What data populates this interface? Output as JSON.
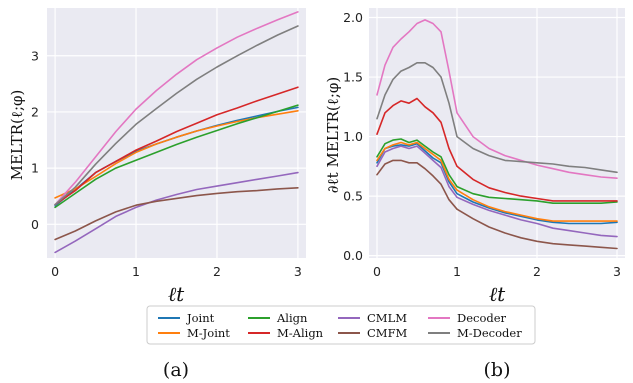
{
  "chart_data": [
    {
      "type": "line",
      "panel_label": "(a)",
      "ylabel": "MELTR(ℓ;φ)",
      "xlabel": "ℓt",
      "xlim": [
        -0.1,
        3.1
      ],
      "ylim": [
        -0.6,
        3.85
      ],
      "xticks": [
        0,
        1,
        2,
        3
      ],
      "yticks": [
        0,
        1,
        2,
        3
      ],
      "grid": true,
      "series": [
        {
          "name": "Joint",
          "color": "#1f77b4",
          "x": [
            0,
            0.25,
            0.5,
            0.75,
            1,
            1.25,
            1.5,
            1.75,
            2,
            2.25,
            2.5,
            2.75,
            3
          ],
          "y": [
            0.33,
            0.62,
            0.92,
            1.12,
            1.3,
            1.43,
            1.55,
            1.66,
            1.76,
            1.85,
            1.93,
            2.01,
            2.08
          ]
        },
        {
          "name": "M-Joint",
          "color": "#ff7f0e",
          "x": [
            0,
            0.25,
            0.5,
            0.75,
            1,
            1.25,
            1.5,
            1.75,
            2,
            2.25,
            2.5,
            2.75,
            3
          ],
          "y": [
            0.47,
            0.63,
            0.85,
            1.08,
            1.28,
            1.43,
            1.55,
            1.66,
            1.75,
            1.83,
            1.9,
            1.96,
            2.02
          ]
        },
        {
          "name": "Align",
          "color": "#2ca02c",
          "x": [
            0,
            0.25,
            0.5,
            0.75,
            1,
            1.25,
            1.5,
            1.75,
            2,
            2.25,
            2.5,
            2.75,
            3
          ],
          "y": [
            0.3,
            0.55,
            0.8,
            1.0,
            1.14,
            1.28,
            1.42,
            1.55,
            1.67,
            1.79,
            1.9,
            2.01,
            2.12
          ]
        },
        {
          "name": "M-Align",
          "color": "#d62728",
          "x": [
            0,
            0.25,
            0.5,
            0.75,
            1,
            1.25,
            1.5,
            1.75,
            2,
            2.25,
            2.5,
            2.75,
            3
          ],
          "y": [
            0.35,
            0.6,
            0.92,
            1.12,
            1.32,
            1.48,
            1.65,
            1.8,
            1.95,
            2.07,
            2.2,
            2.32,
            2.44
          ]
        },
        {
          "name": "CMLM",
          "color": "#9467bd",
          "x": [
            0,
            0.25,
            0.5,
            0.75,
            1,
            1.25,
            1.5,
            1.75,
            2,
            2.25,
            2.5,
            2.75,
            3
          ],
          "y": [
            -0.5,
            -0.3,
            -0.08,
            0.14,
            0.3,
            0.43,
            0.53,
            0.62,
            0.68,
            0.74,
            0.8,
            0.86,
            0.92
          ]
        },
        {
          "name": "CMFM",
          "color": "#8c564b",
          "x": [
            0,
            0.25,
            0.5,
            0.75,
            1,
            1.25,
            1.5,
            1.75,
            2,
            2.25,
            2.5,
            2.75,
            3
          ],
          "y": [
            -0.27,
            -0.12,
            0.06,
            0.22,
            0.34,
            0.41,
            0.46,
            0.51,
            0.55,
            0.58,
            0.6,
            0.63,
            0.65
          ]
        },
        {
          "name": "Decoder",
          "color": "#e377c2",
          "x": [
            0,
            0.25,
            0.5,
            0.75,
            1,
            1.25,
            1.5,
            1.75,
            2,
            2.25,
            2.5,
            2.75,
            3
          ],
          "y": [
            0.35,
            0.75,
            1.2,
            1.65,
            2.05,
            2.38,
            2.67,
            2.93,
            3.14,
            3.33,
            3.49,
            3.64,
            3.78
          ]
        },
        {
          "name": "M-Decoder",
          "color": "#7f7f7f",
          "x": [
            0,
            0.25,
            0.5,
            0.75,
            1,
            1.25,
            1.5,
            1.75,
            2,
            2.25,
            2.5,
            2.75,
            3
          ],
          "y": [
            0.35,
            0.66,
            1.07,
            1.44,
            1.78,
            2.06,
            2.33,
            2.58,
            2.8,
            3.0,
            3.19,
            3.37,
            3.53
          ]
        }
      ]
    },
    {
      "type": "line",
      "panel_label": "(b)",
      "ylabel": "∂ℓt MELTR(ℓ;φ)",
      "xlabel": "ℓt",
      "xlim": [
        -0.1,
        3.1
      ],
      "ylim": [
        -0.02,
        2.08
      ],
      "xticks": [
        0,
        1,
        2,
        3
      ],
      "yticks": [
        0.0,
        0.5,
        1.0,
        1.5,
        2.0
      ],
      "ytick_labels": [
        "0.0",
        "0.5",
        "1.0",
        "1.5",
        "2.0"
      ],
      "grid": true,
      "series": [
        {
          "name": "Joint",
          "color": "#1f77b4",
          "x": [
            0,
            0.1,
            0.2,
            0.3,
            0.4,
            0.5,
            0.6,
            0.7,
            0.8,
            0.9,
            1.0,
            1.2,
            1.4,
            1.6,
            1.8,
            2.0,
            2.2,
            2.4,
            2.6,
            2.8,
            3.0
          ],
          "y": [
            0.78,
            0.9,
            0.92,
            0.93,
            0.92,
            0.94,
            0.88,
            0.82,
            0.78,
            0.62,
            0.52,
            0.45,
            0.4,
            0.36,
            0.33,
            0.3,
            0.28,
            0.27,
            0.27,
            0.27,
            0.28
          ]
        },
        {
          "name": "M-Joint",
          "color": "#ff7f0e",
          "x": [
            0,
            0.1,
            0.2,
            0.3,
            0.4,
            0.5,
            0.6,
            0.7,
            0.8,
            0.9,
            1.0,
            1.2,
            1.4,
            1.6,
            1.8,
            2.0,
            2.2,
            2.4,
            2.6,
            2.8,
            3.0
          ],
          "y": [
            0.8,
            0.9,
            0.93,
            0.95,
            0.93,
            0.95,
            0.9,
            0.85,
            0.8,
            0.64,
            0.55,
            0.47,
            0.41,
            0.37,
            0.34,
            0.31,
            0.29,
            0.29,
            0.29,
            0.29,
            0.29
          ]
        },
        {
          "name": "Align",
          "color": "#2ca02c",
          "x": [
            0,
            0.1,
            0.2,
            0.3,
            0.4,
            0.5,
            0.6,
            0.7,
            0.8,
            0.9,
            1.0,
            1.2,
            1.4,
            1.6,
            1.8,
            2.0,
            2.2,
            2.4,
            2.6,
            2.8,
            3.0
          ],
          "y": [
            0.83,
            0.94,
            0.97,
            0.98,
            0.95,
            0.97,
            0.92,
            0.87,
            0.83,
            0.68,
            0.58,
            0.52,
            0.49,
            0.48,
            0.47,
            0.46,
            0.44,
            0.44,
            0.44,
            0.44,
            0.45
          ]
        },
        {
          "name": "M-Align",
          "color": "#d62728",
          "x": [
            0,
            0.1,
            0.2,
            0.3,
            0.4,
            0.5,
            0.6,
            0.7,
            0.8,
            0.9,
            1.0,
            1.2,
            1.4,
            1.6,
            1.8,
            2.0,
            2.2,
            2.4,
            2.6,
            2.8,
            3.0
          ],
          "y": [
            1.02,
            1.2,
            1.26,
            1.3,
            1.28,
            1.32,
            1.25,
            1.2,
            1.12,
            0.9,
            0.75,
            0.64,
            0.57,
            0.53,
            0.5,
            0.48,
            0.46,
            0.46,
            0.46,
            0.46,
            0.46
          ]
        },
        {
          "name": "CMLM",
          "color": "#9467bd",
          "x": [
            0,
            0.1,
            0.2,
            0.3,
            0.4,
            0.5,
            0.6,
            0.7,
            0.8,
            0.9,
            1.0,
            1.2,
            1.4,
            1.6,
            1.8,
            2.0,
            2.2,
            2.4,
            2.6,
            2.8,
            3.0
          ],
          "y": [
            0.75,
            0.87,
            0.9,
            0.92,
            0.9,
            0.92,
            0.86,
            0.8,
            0.74,
            0.58,
            0.49,
            0.43,
            0.38,
            0.34,
            0.3,
            0.27,
            0.23,
            0.21,
            0.19,
            0.17,
            0.16
          ]
        },
        {
          "name": "CMFM",
          "color": "#8c564b",
          "x": [
            0,
            0.1,
            0.2,
            0.3,
            0.4,
            0.5,
            0.6,
            0.7,
            0.8,
            0.9,
            1.0,
            1.2,
            1.4,
            1.6,
            1.8,
            2.0,
            2.2,
            2.4,
            2.6,
            2.8,
            3.0
          ],
          "y": [
            0.68,
            0.77,
            0.8,
            0.8,
            0.78,
            0.78,
            0.73,
            0.67,
            0.6,
            0.47,
            0.39,
            0.31,
            0.24,
            0.19,
            0.15,
            0.12,
            0.1,
            0.09,
            0.08,
            0.07,
            0.06
          ]
        },
        {
          "name": "Decoder",
          "color": "#e377c2",
          "x": [
            0,
            0.1,
            0.2,
            0.3,
            0.4,
            0.5,
            0.6,
            0.7,
            0.8,
            0.9,
            1.0,
            1.2,
            1.4,
            1.6,
            1.8,
            2.0,
            2.2,
            2.4,
            2.6,
            2.8,
            3.0
          ],
          "y": [
            1.35,
            1.6,
            1.75,
            1.82,
            1.88,
            1.95,
            1.98,
            1.95,
            1.88,
            1.55,
            1.2,
            1.0,
            0.9,
            0.84,
            0.8,
            0.76,
            0.73,
            0.7,
            0.68,
            0.66,
            0.65
          ]
        },
        {
          "name": "M-Decoder",
          "color": "#7f7f7f",
          "x": [
            0,
            0.1,
            0.2,
            0.3,
            0.4,
            0.5,
            0.6,
            0.7,
            0.8,
            0.9,
            1.0,
            1.2,
            1.4,
            1.6,
            1.8,
            2.0,
            2.2,
            2.4,
            2.6,
            2.8,
            3.0
          ],
          "y": [
            1.15,
            1.35,
            1.48,
            1.55,
            1.58,
            1.62,
            1.62,
            1.58,
            1.5,
            1.28,
            1.0,
            0.9,
            0.84,
            0.8,
            0.79,
            0.78,
            0.77,
            0.75,
            0.74,
            0.72,
            0.7
          ]
        }
      ]
    }
  ],
  "legend": {
    "placement": "bottom-center",
    "entries": [
      {
        "label": "Joint",
        "color": "#1f77b4"
      },
      {
        "label": "M-Joint",
        "color": "#ff7f0e"
      },
      {
        "label": "Align",
        "color": "#2ca02c"
      },
      {
        "label": "M-Align",
        "color": "#d62728"
      },
      {
        "label": "CMLM",
        "color": "#9467bd"
      },
      {
        "label": "CMFM",
        "color": "#8c564b"
      },
      {
        "label": "Decoder",
        "color": "#e377c2"
      },
      {
        "label": "M-Decoder",
        "color": "#7f7f7f"
      }
    ]
  },
  "colors": {
    "plot_background": "#eaeaf2",
    "grid": "#ffffff"
  }
}
